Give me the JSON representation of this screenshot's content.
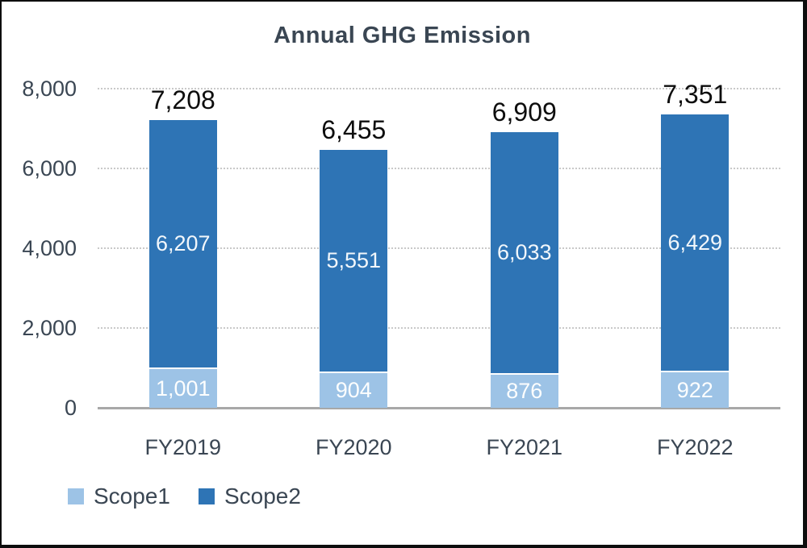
{
  "chart_data": {
    "type": "bar",
    "stacked": true,
    "title": "Annual GHG Emission",
    "categories": [
      "FY2019",
      "FY2020",
      "FY2021",
      "FY2022"
    ],
    "series": [
      {
        "name": "Scope1",
        "color": "#9DC3E6",
        "values": [
          1001,
          904,
          876,
          922
        ],
        "value_labels": [
          "1,001",
          "904",
          "876",
          "922"
        ],
        "label_color": "#FDFEFE"
      },
      {
        "name": "Scope2",
        "color": "#2E74B5",
        "values": [
          6207,
          5551,
          6033,
          6429
        ],
        "value_labels": [
          "6,207",
          "5,551",
          "6,033",
          "6,429"
        ],
        "label_color": "#F2F7FB"
      }
    ],
    "totals": {
      "values": [
        7208,
        6455,
        6909,
        7351
      ],
      "labels": [
        "7,208",
        "6,455",
        "6,909",
        "7,351"
      ],
      "color": "#0D0D0D"
    },
    "ylim": [
      0,
      8000
    ],
    "yticks": {
      "values": [
        0,
        2000,
        4000,
        6000,
        8000
      ],
      "labels": [
        "0",
        "2,000",
        "4,000",
        "6,000",
        "8,000"
      ]
    },
    "grid": {
      "horizontal": true,
      "style": "dotted",
      "color": "#C9C9C9"
    },
    "axis_line_color": "#A8A8A8",
    "text_color": "#3A4653",
    "legend": {
      "position": "bottom-left",
      "items": [
        {
          "label": "Scope1",
          "color": "#9DC3E6"
        },
        {
          "label": "Scope2",
          "color": "#2E74B5"
        }
      ]
    }
  }
}
